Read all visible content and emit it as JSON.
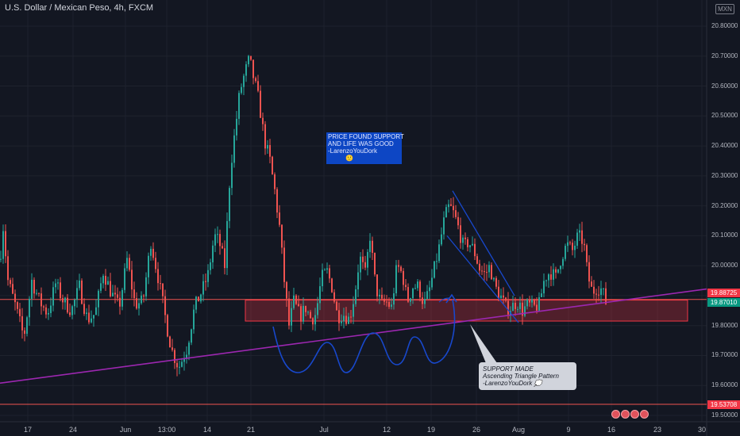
{
  "header": {
    "title": "U.S. Dollar / Mexican Peso, 4h, FXCM",
    "currency_badge": "MXN"
  },
  "price_badges": [
    {
      "label": "19.88725",
      "color": "#f23645"
    },
    {
      "label": "19.87010",
      "color": "#089981"
    },
    {
      "label": "19.53708",
      "color": "#f23645"
    }
  ],
  "annotations": {
    "price_support_note": [
      "PRICE FOUND SUPPORT",
      "AND LIFE WAS GOOD",
      "-LarenzoYouDork",
      "🙂"
    ],
    "triangle_note": [
      "SUPPORT MADE",
      "Ascending Triangle Pattern",
      "-LarenzoYouDork 💭"
    ]
  },
  "colors": {
    "up": "#26a69a",
    "down": "#ef5350",
    "trendline": "#9c27b0",
    "support_zone": "#f23645",
    "drawing_blue": "#1848cc",
    "grid": "#1e222d"
  },
  "chart_data": {
    "type": "candlestick",
    "title": "U.S. Dollar / Mexican Peso, 4h, FXCM",
    "ylim": [
      19.5,
      20.8
    ],
    "yticks": [
      "20.80000",
      "20.70000",
      "20.60000",
      "20.50000",
      "20.40000",
      "20.30000",
      "20.20000",
      "20.10000",
      "20.00000",
      "19.90000",
      "19.80000",
      "19.70000",
      "19.60000",
      "19.50000"
    ],
    "xticks": [
      "17",
      "24",
      "Jun",
      "13:00",
      "14",
      "21",
      "Jul",
      "12",
      "19",
      "26",
      "Aug",
      "9",
      "16",
      "23",
      "30"
    ],
    "grid": true,
    "close_anchors": [
      [
        0,
        20.02
      ],
      [
        4,
        20.13
      ],
      [
        10,
        19.95
      ],
      [
        20,
        19.86
      ],
      [
        30,
        19.76
      ],
      [
        40,
        19.95
      ],
      [
        50,
        19.88
      ],
      [
        60,
        19.84
      ],
      [
        70,
        19.94
      ],
      [
        80,
        19.88
      ],
      [
        90,
        19.85
      ],
      [
        100,
        19.93
      ],
      [
        110,
        19.82
      ],
      [
        120,
        19.84
      ],
      [
        130,
        19.98
      ],
      [
        140,
        19.91
      ],
      [
        150,
        19.86
      ],
      [
        160,
        20.02
      ],
      [
        170,
        19.87
      ],
      [
        180,
        19.88
      ],
      [
        190,
        20.08
      ],
      [
        200,
        19.95
      ],
      [
        210,
        19.8
      ],
      [
        216,
        19.72
      ],
      [
        225,
        19.66
      ],
      [
        235,
        19.72
      ],
      [
        245,
        19.86
      ],
      [
        255,
        19.92
      ],
      [
        262,
        19.97
      ],
      [
        270,
        20.1
      ],
      [
        276,
        20.08
      ],
      [
        283,
        20.0
      ],
      [
        290,
        20.32
      ],
      [
        296,
        20.45
      ],
      [
        302,
        20.58
      ],
      [
        308,
        20.64
      ],
      [
        314,
        20.69
      ],
      [
        320,
        20.62
      ],
      [
        326,
        20.55
      ],
      [
        333,
        20.42
      ],
      [
        340,
        20.35
      ],
      [
        346,
        20.25
      ],
      [
        352,
        20.13
      ],
      [
        358,
        19.95
      ],
      [
        364,
        19.8
      ],
      [
        370,
        19.88
      ],
      [
        378,
        19.83
      ],
      [
        385,
        19.86
      ],
      [
        392,
        19.82
      ],
      [
        398,
        19.84
      ],
      [
        405,
        19.96
      ],
      [
        412,
        19.98
      ],
      [
        418,
        19.93
      ],
      [
        425,
        19.83
      ],
      [
        432,
        19.84
      ],
      [
        440,
        19.82
      ],
      [
        447,
        19.91
      ],
      [
        453,
        20.03
      ],
      [
        460,
        19.97
      ],
      [
        466,
        20.1
      ],
      [
        473,
        19.93
      ],
      [
        480,
        19.87
      ],
      [
        486,
        19.88
      ],
      [
        493,
        19.86
      ],
      [
        500,
        20.0
      ],
      [
        507,
        19.97
      ],
      [
        513,
        19.88
      ],
      [
        520,
        19.93
      ],
      [
        527,
        19.93
      ],
      [
        534,
        19.87
      ],
      [
        540,
        19.91
      ],
      [
        547,
        19.99
      ],
      [
        553,
        20.06
      ],
      [
        560,
        20.16
      ],
      [
        566,
        20.2
      ],
      [
        572,
        20.17
      ],
      [
        578,
        20.12
      ],
      [
        584,
        20.06
      ],
      [
        590,
        20.08
      ],
      [
        597,
        20.05
      ],
      [
        604,
        19.99
      ],
      [
        611,
        19.97
      ],
      [
        617,
        20.0
      ],
      [
        623,
        19.93
      ],
      [
        630,
        19.9
      ],
      [
        637,
        19.86
      ],
      [
        644,
        19.86
      ],
      [
        651,
        19.88
      ],
      [
        658,
        19.85
      ],
      [
        665,
        19.87
      ],
      [
        672,
        19.86
      ],
      [
        679,
        19.87
      ],
      [
        686,
        19.96
      ],
      [
        693,
        19.98
      ],
      [
        700,
        19.96
      ],
      [
        707,
        20.03
      ],
      [
        714,
        20.07
      ],
      [
        721,
        20.05
      ],
      [
        728,
        20.1
      ],
      [
        735,
        20.08
      ],
      [
        740,
        19.97
      ],
      [
        746,
        19.91
      ],
      [
        752,
        19.93
      ],
      [
        758,
        19.92
      ],
      [
        764,
        19.87
      ]
    ],
    "trendline": {
      "start": {
        "date": "17",
        "price": 19.62
      },
      "end": {
        "date": "30",
        "price": 19.92
      }
    },
    "support_zone": [
      19.815,
      19.885
    ],
    "horizontal_levels": [
      19.88725,
      19.53708
    ]
  }
}
